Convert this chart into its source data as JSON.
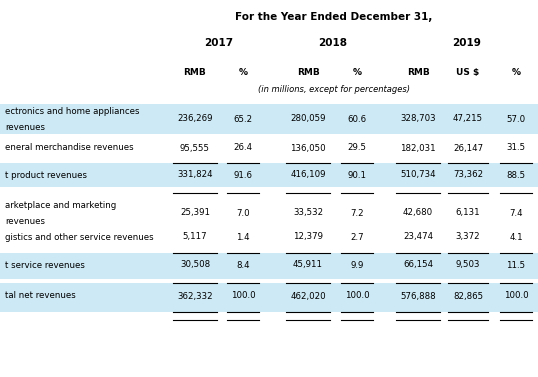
{
  "title": "For the Year Ended December 31,",
  "subtitle": "(in millions, except for percentages)",
  "col_headers": [
    "RMB",
    "%",
    "RMB",
    "%",
    "RMB",
    "US $",
    "%"
  ],
  "rows": [
    {
      "label_line1": "ectronics and home appliances",
      "label_line2": "revenues",
      "values": [
        "236,269",
        "65.2",
        "280,059",
        "60.6",
        "328,703",
        "47,215",
        "57.0"
      ],
      "highlight": true,
      "is_subtotal": false,
      "top_border": false,
      "bottom_border": false,
      "gap_before": false
    },
    {
      "label_line1": "eneral merchandise revenues",
      "label_line2": "",
      "values": [
        "95,555",
        "26.4",
        "136,050",
        "29.5",
        "182,031",
        "26,147",
        "31.5"
      ],
      "highlight": false,
      "is_subtotal": false,
      "top_border": false,
      "bottom_border": false,
      "gap_before": false
    },
    {
      "label_line1": "t product revenues",
      "label_line2": "",
      "values": [
        "331,824",
        "91.6",
        "416,109",
        "90.1",
        "510,734",
        "73,362",
        "88.5"
      ],
      "highlight": true,
      "is_subtotal": false,
      "top_border": true,
      "bottom_border": false,
      "gap_before": true
    },
    {
      "label_line1": "arketplace and marketing",
      "label_line2": "revenues",
      "values": [
        "25,391",
        "7.0",
        "33,532",
        "7.2",
        "42,680",
        "6,131",
        "7.4"
      ],
      "highlight": false,
      "is_subtotal": false,
      "top_border": false,
      "bottom_border": false,
      "gap_before": true
    },
    {
      "label_line1": "gistics and other service revenues",
      "label_line2": "",
      "values": [
        "5,117",
        "1.4",
        "12,379",
        "2.7",
        "23,474",
        "3,372",
        "4.1"
      ],
      "highlight": false,
      "is_subtotal": false,
      "top_border": false,
      "bottom_border": false,
      "gap_before": false
    },
    {
      "label_line1": "t service revenues",
      "label_line2": "",
      "values": [
        "30,508",
        "8.4",
        "45,911",
        "9.9",
        "66,154",
        "9,503",
        "11.5"
      ],
      "highlight": true,
      "is_subtotal": false,
      "top_border": true,
      "bottom_border": false,
      "gap_before": true
    },
    {
      "label_line1": "tal net revenues",
      "label_line2": "",
      "values": [
        "362,332",
        "100.0",
        "462,020",
        "100.0",
        "576,888",
        "82,865",
        "100.0"
      ],
      "highlight": true,
      "is_subtotal": false,
      "top_border": true,
      "bottom_border": true,
      "gap_before": true
    }
  ],
  "highlight_color": "#cce9f5",
  "bg_color": "#ffffff",
  "text_color": "#000000",
  "border_color": "#000000",
  "figsize": [
    5.38,
    3.77
  ],
  "dpi": 100
}
